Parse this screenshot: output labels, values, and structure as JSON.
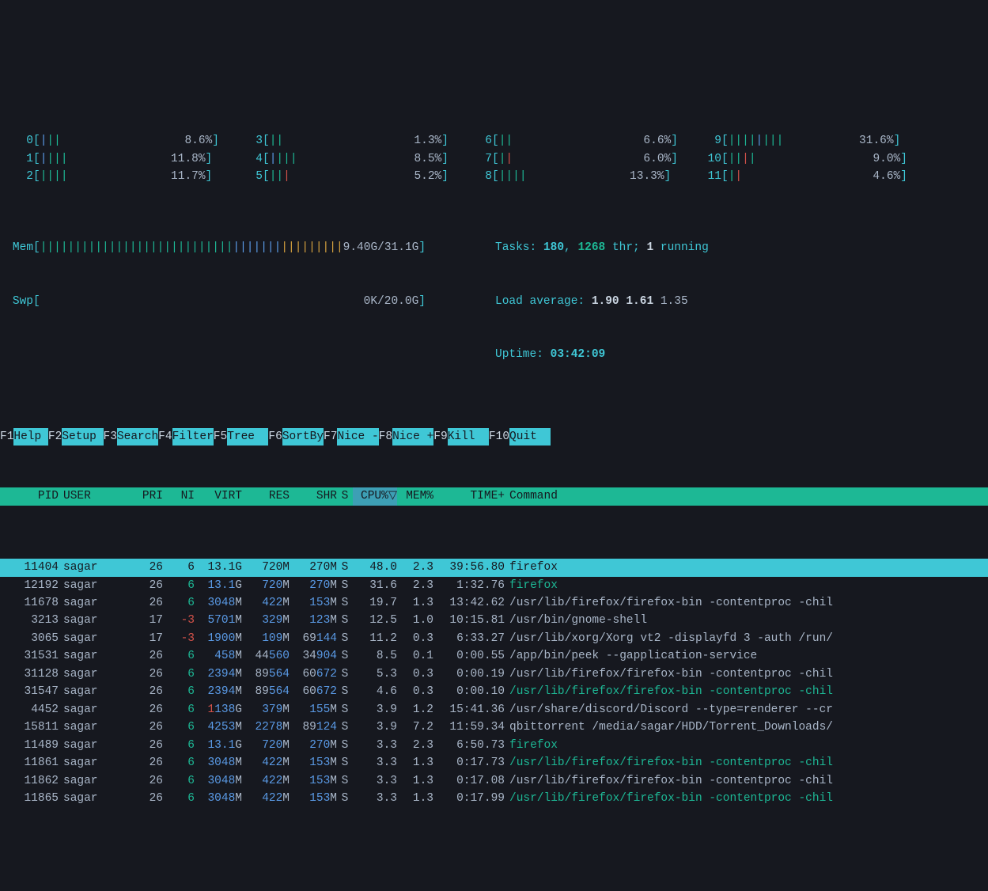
{
  "colors": {
    "bg": "#16181f",
    "cyan": "#3fc7d6",
    "green": "#1db895",
    "blue": "#5a9ae6",
    "red": "#d4524a",
    "yellow": "#d6a23f",
    "dim": "#a9b6c8",
    "white": "#cbd6e2",
    "header_bg": "#1db895",
    "sort_bg": "#3d9fb5"
  },
  "cpu_meters": [
    {
      "id": "0",
      "bars": [
        {
          "c": "blue"
        },
        {
          "c": "green"
        },
        {
          "c": "green"
        }
      ],
      "value": "8.6%",
      "pad": 22
    },
    {
      "id": "3",
      "bars": [
        {
          "c": "green"
        },
        {
          "c": "green"
        }
      ],
      "value": "1.3%",
      "pad": 23
    },
    {
      "id": "6",
      "bars": [
        {
          "c": "green"
        },
        {
          "c": "green"
        }
      ],
      "value": "6.6%",
      "pad": 23
    },
    {
      "id": "9",
      "bars": [
        {
          "c": "green"
        },
        {
          "c": "green"
        },
        {
          "c": "green"
        },
        {
          "c": "green"
        },
        {
          "c": "blue"
        },
        {
          "c": "green"
        },
        {
          "c": "green"
        },
        {
          "c": "green"
        }
      ],
      "value": "31.6%",
      "pad": 16
    },
    {
      "id": "1",
      "bars": [
        {
          "c": "blue"
        },
        {
          "c": "green"
        },
        {
          "c": "green"
        },
        {
          "c": "green"
        }
      ],
      "value": "11.8%",
      "pad": 20
    },
    {
      "id": "4",
      "bars": [
        {
          "c": "blue"
        },
        {
          "c": "green"
        },
        {
          "c": "green"
        },
        {
          "c": "green"
        }
      ],
      "value": "8.5%",
      "pad": 21
    },
    {
      "id": "7",
      "bars": [
        {
          "c": "green"
        },
        {
          "c": "red"
        }
      ],
      "value": "6.0%",
      "pad": 23
    },
    {
      "id": "10",
      "bars": [
        {
          "c": "green"
        },
        {
          "c": "green"
        },
        {
          "c": "red"
        },
        {
          "c": "green"
        }
      ],
      "value": "9.0%",
      "pad": 21
    },
    {
      "id": "2",
      "bars": [
        {
          "c": "green"
        },
        {
          "c": "green"
        },
        {
          "c": "green"
        },
        {
          "c": "green"
        }
      ],
      "value": "11.7%",
      "pad": 20
    },
    {
      "id": "5",
      "bars": [
        {
          "c": "green"
        },
        {
          "c": "green"
        },
        {
          "c": "red"
        }
      ],
      "value": "5.2%",
      "pad": 22
    },
    {
      "id": "8",
      "bars": [
        {
          "c": "green"
        },
        {
          "c": "green"
        },
        {
          "c": "green"
        },
        {
          "c": "green"
        }
      ],
      "value": "13.3%",
      "pad": 20
    },
    {
      "id": "11",
      "bars": [
        {
          "c": "green"
        },
        {
          "c": "red"
        }
      ],
      "value": "4.6%",
      "pad": 23
    }
  ],
  "mem": {
    "label": "Mem",
    "bars_green": 28,
    "bars_blue": 7,
    "bars_yellow": 9,
    "value": "9.40G/31.1G"
  },
  "swp": {
    "label": "Swp",
    "value": "0K/20.0G",
    "pad": 55
  },
  "tasks": {
    "prefix": "Tasks: ",
    "n": "180",
    "sep": ", ",
    "thr": "1268",
    "suffix": " thr; ",
    "running": "1",
    "running_suffix": " running"
  },
  "load": {
    "prefix": "Load average: ",
    "l1": "1.90",
    "l2": "1.61",
    "l3": "1.35"
  },
  "uptime": {
    "prefix": "Uptime: ",
    "value": "03:42:09"
  },
  "columns": {
    "pid": "PID",
    "user": "USER",
    "pri": "PRI",
    "ni": "NI",
    "virt": "VIRT",
    "res": "RES",
    "shr": "SHR",
    "s": "S",
    "cpu": "CPU%▽",
    "mem": "MEM%",
    "time": "TIME+",
    "cmd": "Command"
  },
  "processes": [
    {
      "pid": "11404",
      "user": "sagar",
      "pri": "26",
      "ni": "6",
      "virt": "13.1G",
      "res": "720M",
      "shr": "270M",
      "s": "S",
      "cpu": "48.0",
      "mem": "2.3",
      "time": "39:56.80",
      "cmd": "firefox",
      "cmd_style": "plain",
      "selected": true
    },
    {
      "pid": "12192",
      "user": "sagar",
      "pri": "26",
      "ni": "6",
      "virt": "13.1G",
      "res": "720M",
      "shr": "270M",
      "s": "S",
      "cpu": "31.6",
      "mem": "2.3",
      "time": "1:32.76",
      "cmd": "firefox",
      "cmd_style": "green"
    },
    {
      "pid": "11678",
      "user": "sagar",
      "pri": "26",
      "ni": "6",
      "virt": "3048M",
      "res": "422M",
      "shr": "153M",
      "s": "S",
      "cpu": "19.7",
      "mem": "1.3",
      "time": "13:42.62",
      "cmd": "/usr/lib/firefox/firefox-bin -contentproc -chil",
      "cmd_style": "dim"
    },
    {
      "pid": "3213",
      "user": "sagar",
      "pri": "17",
      "ni": "-3",
      "ni_red": true,
      "virt": "5701M",
      "res": "329M",
      "shr": "123M",
      "s": "S",
      "cpu": "12.5",
      "mem": "1.0",
      "time": "10:15.81",
      "cmd": "/usr/bin/gnome-shell",
      "cmd_style": "dim"
    },
    {
      "pid": "3065",
      "user": "sagar",
      "pri": "17",
      "ni": "-3",
      "ni_red": true,
      "virt": "1900M",
      "res": "109M",
      "shr": "69144",
      "shr_nosuffix": true,
      "s": "S",
      "cpu": "11.2",
      "mem": "0.3",
      "time": "6:33.27",
      "cmd": "/usr/lib/xorg/Xorg vt2 -displayfd 3 -auth /run/",
      "cmd_style": "dim"
    },
    {
      "pid": "31531",
      "user": "sagar",
      "pri": "26",
      "ni": "6",
      "virt": "458M",
      "res": "44560",
      "res_nosuffix": true,
      "shr": "34904",
      "shr_nosuffix": true,
      "s": "S",
      "cpu": "8.5",
      "mem": "0.1",
      "time": "0:00.55",
      "cmd": "/app/bin/peek --gapplication-service",
      "cmd_style": "dim"
    },
    {
      "pid": "31128",
      "user": "sagar",
      "pri": "26",
      "ni": "6",
      "virt": "2394M",
      "res": "89564",
      "res_nosuffix": true,
      "shr": "60672",
      "shr_nosuffix": true,
      "s": "S",
      "cpu": "5.3",
      "mem": "0.3",
      "time": "0:00.19",
      "cmd": "/usr/lib/firefox/firefox-bin -contentproc -chil",
      "cmd_style": "dim"
    },
    {
      "pid": "31547",
      "user": "sagar",
      "pri": "26",
      "ni": "6",
      "virt": "2394M",
      "res": "89564",
      "res_nosuffix": true,
      "shr": "60672",
      "shr_nosuffix": true,
      "s": "S",
      "cpu": "4.6",
      "mem": "0.3",
      "time": "0:00.10",
      "cmd": "/usr/lib/firefox/firefox-bin -contentproc -chil",
      "cmd_style": "green"
    },
    {
      "pid": "4452",
      "user": "sagar",
      "pri": "26",
      "ni": "6",
      "virt": "1138G",
      "virt_red1": true,
      "res": "379M",
      "shr": "155M",
      "s": "S",
      "cpu": "3.9",
      "mem": "1.2",
      "time": "15:41.36",
      "cmd": "/usr/share/discord/Discord --type=renderer --cr",
      "cmd_style": "dim"
    },
    {
      "pid": "15811",
      "user": "sagar",
      "pri": "26",
      "ni": "6",
      "virt": "4253M",
      "res": "2278M",
      "shr": "89124",
      "shr_nosuffix": true,
      "s": "S",
      "cpu": "3.9",
      "mem": "7.2",
      "time": "11:59.34",
      "cmd": "qbittorrent /media/sagar/HDD/Torrent_Downloads/",
      "cmd_style": "dim"
    },
    {
      "pid": "11489",
      "user": "sagar",
      "pri": "26",
      "ni": "6",
      "virt": "13.1G",
      "res": "720M",
      "shr": "270M",
      "s": "S",
      "cpu": "3.3",
      "mem": "2.3",
      "time": "6:50.73",
      "cmd": "firefox",
      "cmd_style": "green"
    },
    {
      "pid": "11861",
      "user": "sagar",
      "pri": "26",
      "ni": "6",
      "virt": "3048M",
      "res": "422M",
      "shr": "153M",
      "s": "S",
      "cpu": "3.3",
      "mem": "1.3",
      "time": "0:17.73",
      "cmd": "/usr/lib/firefox/firefox-bin -contentproc -chil",
      "cmd_style": "green"
    },
    {
      "pid": "11862",
      "user": "sagar",
      "pri": "26",
      "ni": "6",
      "virt": "3048M",
      "res": "422M",
      "shr": "153M",
      "s": "S",
      "cpu": "3.3",
      "mem": "1.3",
      "time": "0:17.08",
      "cmd": "/usr/lib/firefox/firefox-bin -contentproc -chil",
      "cmd_style": "dim"
    },
    {
      "pid": "11865",
      "user": "sagar",
      "pri": "26",
      "ni": "6",
      "virt": "3048M",
      "res": "422M",
      "shr": "153M",
      "s": "S",
      "cpu": "3.3",
      "mem": "1.3",
      "time": "0:17.99",
      "cmd": "/usr/lib/firefox/firefox-bin -contentproc -chil",
      "cmd_style": "green"
    }
  ],
  "fkeys": [
    {
      "k": "F1",
      "l": "Help "
    },
    {
      "k": "F2",
      "l": "Setup "
    },
    {
      "k": "F3",
      "l": "Search"
    },
    {
      "k": "F4",
      "l": "Filter"
    },
    {
      "k": "F5",
      "l": "Tree  "
    },
    {
      "k": "F6",
      "l": "SortBy"
    },
    {
      "k": "F7",
      "l": "Nice -"
    },
    {
      "k": "F8",
      "l": "Nice +"
    },
    {
      "k": "F9",
      "l": "Kill  "
    },
    {
      "k": "F10",
      "l": "Quit  "
    }
  ]
}
